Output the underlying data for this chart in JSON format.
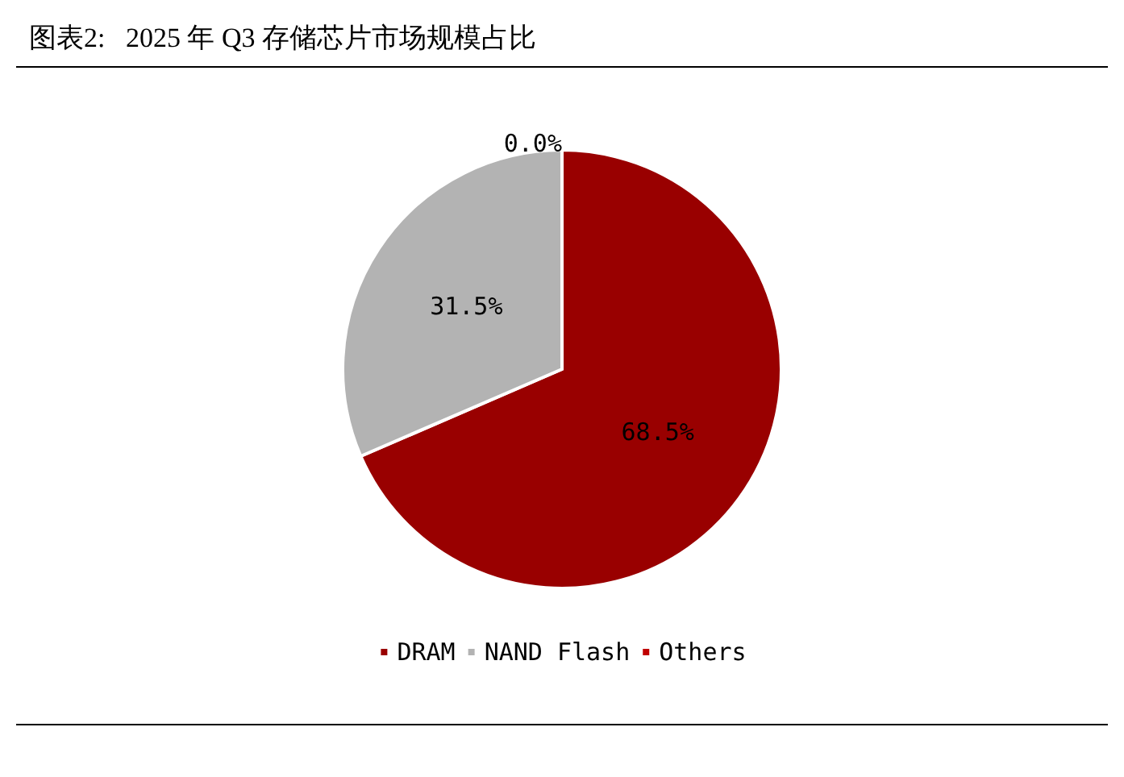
{
  "chart_data": {
    "type": "pie",
    "title": "图表2:   2025 年 Q3 存储芯片市场规模占比",
    "categories": [
      "DRAM",
      "NAND Flash",
      "Others"
    ],
    "values": [
      68.5,
      31.5,
      0.0
    ],
    "colors": [
      "#990000",
      "#b3b3b3",
      "#c00000"
    ],
    "value_labels": [
      "68.5%",
      "31.5%",
      "0.0%"
    ],
    "legend": "bottom"
  }
}
